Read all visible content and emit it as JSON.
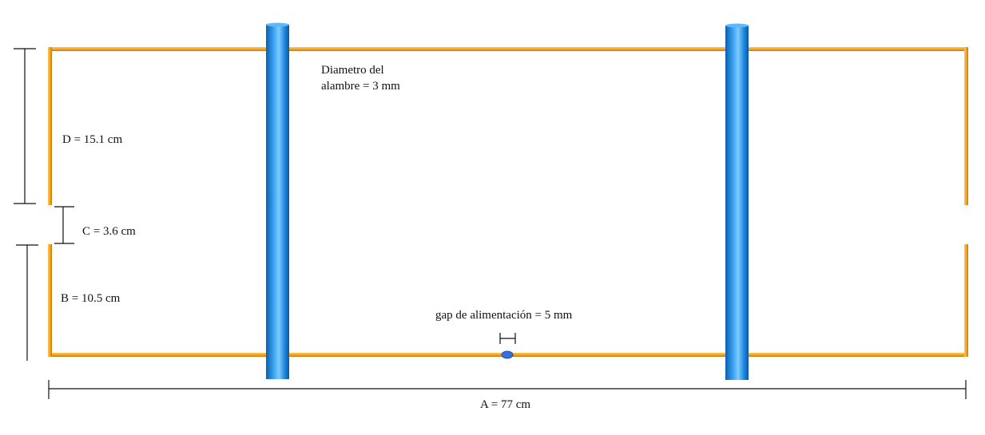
{
  "diagram": {
    "labels": {
      "wire_diameter_line1": "Diametro del",
      "wire_diameter_line2": "alambre = 3 mm",
      "dim_d": "D = 15.1 cm",
      "dim_c": "C = 3.6 cm",
      "dim_b": "B = 10.5 cm",
      "feed_gap": "gap de alimentación = 5 mm",
      "dim_a": "A = 77 cm"
    },
    "colors": {
      "wire": "#F5A623",
      "wire_dark": "#C77A0E",
      "support": "#1E90E8",
      "support_light": "#6EC0FF",
      "support_dark": "#0B5FB0",
      "feed_point": "#3A6FD8",
      "dimension_lines": "#111111"
    }
  }
}
